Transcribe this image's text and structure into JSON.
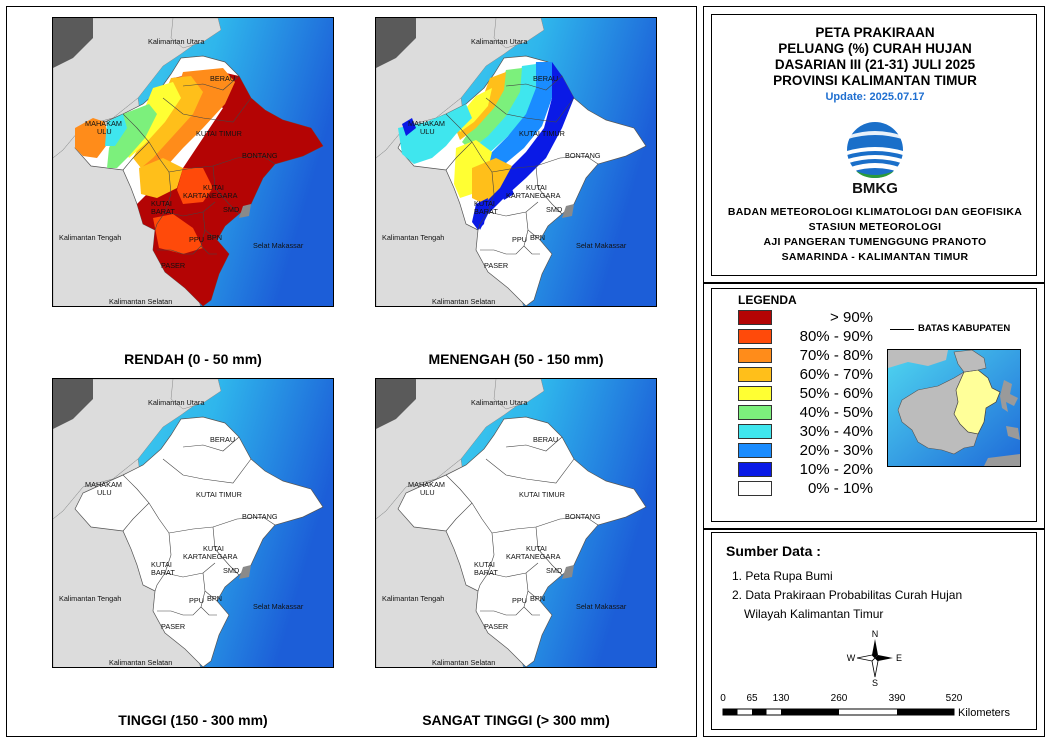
{
  "title": {
    "line1": "PETA PRAKIRAAN",
    "line2": "PELUANG (%) CURAH HUJAN",
    "line3": "DASARIAN III (21-31) JULI 2025",
    "line4": "PROVINSI KALIMANTAN TIMUR",
    "update": "Update: 2025.07.17"
  },
  "agency": {
    "logo_text": "BMKG",
    "line1": "BADAN METEOROLOGI KLIMATOLOGI DAN GEOFISIKA",
    "line2": "STASIUN METEOROLOGI",
    "line3": "AJI PANGERAN TUMENGGUNG PRANOTO",
    "line4": "SAMARINDA - KALIMANTAN TIMUR"
  },
  "legend": {
    "title": "LEGENDA",
    "items": [
      {
        "label": "> 90%",
        "color": "#b40404"
      },
      {
        "label": "80% - 90%",
        "color": "#ff4a0a"
      },
      {
        "label": "70% - 80%",
        "color": "#ff8c1a"
      },
      {
        "label": "60% - 70%",
        "color": "#ffbf1a"
      },
      {
        "label": "50% - 60%",
        "color": "#ffff33"
      },
      {
        "label": "40% - 50%",
        "color": "#7cf07c"
      },
      {
        "label": "30% - 40%",
        "color": "#3fe6ee"
      },
      {
        "label": "20% - 30%",
        "color": "#1a8cff"
      },
      {
        "label": "10% - 20%",
        "color": "#0a1ae6"
      },
      {
        "label": "0% - 10%",
        "color": "#ffffff"
      }
    ],
    "boundary_label": "BATAS KABUPATEN",
    "inset_highlight_color": "#ffff99"
  },
  "sources": {
    "title": "Sumber Data :",
    "item1": "1. Peta Rupa Bumi",
    "item2a": "2. Data Prakiraan Probabilitas Curah Hujan",
    "item2b": "Wilayah Kalimantan Timur"
  },
  "compass": {
    "n": "N",
    "s": "S",
    "e": "E",
    "w": "W"
  },
  "scale": {
    "ticks": [
      "0",
      "65",
      "130",
      "260",
      "390",
      "520"
    ],
    "unit": "Kilometers"
  },
  "map_labels": {
    "kaltara": "Kalimantan Utara",
    "kalteng": "Kalimantan Tengah",
    "kalsel": "Kalimantan Selatan",
    "selat": "Selat Makassar",
    "berau": "BERAU",
    "mahakam1": "MAHAKAM",
    "mahakam2": "ULU",
    "kutim": "KUTAI TIMUR",
    "bontang": "BONTANG",
    "kukar1": "KUTAI",
    "kukar2": "KARTANEGARA",
    "kubar1": "KUTAI",
    "kubar2": "BARAT",
    "smd": "SMD",
    "ppu": "PPU",
    "bpn": "BPN",
    "paser": "PASER"
  },
  "panels": [
    {
      "caption": "RENDAH (0 - 50 mm)"
    },
    {
      "caption": "MENENGAH (50 - 150 mm)"
    },
    {
      "caption": "TINGGI (150 - 300 mm)"
    },
    {
      "caption": "SANGAT TINGGI (> 300 mm)"
    }
  ],
  "colors": {
    "land_outside": "#dcdcdc",
    "dark_land": "#5a5a5a",
    "sea_light": "#3ad6ee",
    "sea_deep": "#1a5fd6",
    "province_white": "#ffffff"
  }
}
